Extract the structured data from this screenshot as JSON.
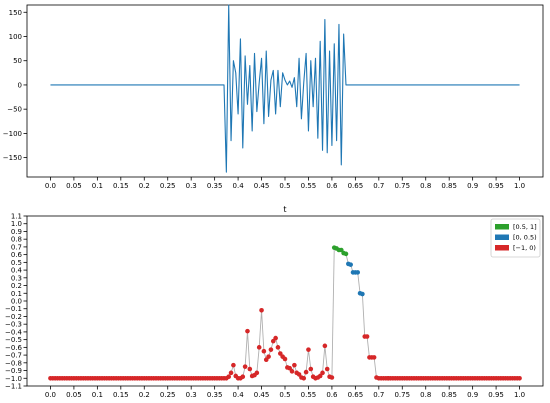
{
  "chart_data": [
    {
      "type": "line",
      "title": "",
      "xlabel": "",
      "ylabel": "",
      "xlim": [
        -0.05,
        1.05
      ],
      "ylim": [
        -190,
        165
      ],
      "x_ticks": [
        0.0,
        0.05,
        0.1,
        0.15,
        0.2,
        0.25,
        0.3,
        0.35,
        0.4,
        0.45,
        0.5,
        0.55,
        0.6,
        0.65,
        0.7,
        0.75,
        0.8,
        0.85,
        0.9,
        0.95,
        1.0
      ],
      "x_tick_labels": [
        "0.0",
        "0.05",
        "0.1",
        "0.15",
        "0.2",
        "0.25",
        "0.3",
        "0.35",
        "0.4",
        "0.45",
        "0.5",
        "0.55",
        "0.6",
        "0.65",
        "0.7",
        "0.75",
        "0.8",
        "0.85",
        "0.9",
        "0.95",
        "1.0"
      ],
      "y_ticks": [
        -150,
        -100,
        -50,
        0,
        50,
        100,
        150
      ],
      "y_tick_labels": [
        "−150",
        "−100",
        "−50",
        "0",
        "50",
        "100",
        "150"
      ],
      "color": "#1f77b4",
      "grid": false,
      "series": [
        {
          "x": [
            0.0,
            0.37,
            0.375,
            0.38,
            0.385,
            0.39,
            0.395,
            0.4,
            0.405,
            0.41,
            0.415,
            0.42,
            0.425,
            0.43,
            0.435,
            0.44,
            0.445,
            0.45,
            0.455,
            0.46,
            0.465,
            0.47,
            0.475,
            0.48,
            0.485,
            0.49,
            0.495,
            0.5,
            0.505,
            0.51,
            0.515,
            0.52,
            0.525,
            0.53,
            0.535,
            0.54,
            0.545,
            0.55,
            0.555,
            0.56,
            0.565,
            0.57,
            0.575,
            0.58,
            0.585,
            0.59,
            0.595,
            0.6,
            0.605,
            0.61,
            0.615,
            0.62,
            0.625,
            0.63,
            1.0
          ],
          "y": [
            0,
            0,
            -180,
            165,
            -115,
            50,
            25,
            -60,
            95,
            -130,
            60,
            -40,
            40,
            -95,
            65,
            -55,
            5,
            55,
            -80,
            70,
            -65,
            10,
            30,
            -60,
            30,
            -45,
            25,
            10,
            0,
            8,
            -5,
            15,
            -45,
            55,
            -70,
            5,
            65,
            -95,
            50,
            -45,
            55,
            -110,
            90,
            -135,
            135,
            -140,
            70,
            -125,
            85,
            -115,
            125,
            -165,
            105,
            0,
            0
          ]
        }
      ]
    },
    {
      "type": "scatter",
      "title": "t",
      "xlabel": "",
      "ylabel": "",
      "xlim": [
        -0.05,
        1.05
      ],
      "ylim": [
        -1.1,
        1.1
      ],
      "x_ticks": [
        0.0,
        0.05,
        0.1,
        0.15,
        0.2,
        0.25,
        0.3,
        0.35,
        0.4,
        0.45,
        0.5,
        0.55,
        0.6,
        0.65,
        0.7,
        0.75,
        0.8,
        0.85,
        0.9,
        0.95,
        1.0
      ],
      "x_tick_labels": [
        "0.0",
        "0.05",
        "0.1",
        "0.15",
        "0.2",
        "0.25",
        "0.3",
        "0.35",
        "0.4",
        "0.45",
        "0.5",
        "0.55",
        "0.6",
        "0.65",
        "0.7",
        "0.75",
        "0.8",
        "0.85",
        "0.9",
        "0.95",
        "1.0"
      ],
      "y_ticks": [
        -1.1,
        -1.0,
        -0.9,
        -0.8,
        -0.7,
        -0.6,
        -0.5,
        -0.4,
        -0.3,
        -0.2,
        -0.1,
        0.0,
        0.1,
        0.2,
        0.3,
        0.4,
        0.5,
        0.6,
        0.7,
        0.8,
        0.9,
        1.0,
        1.1
      ],
      "y_tick_labels": [
        "−1.1",
        "−1.0",
        "−0.9",
        "−0.8",
        "−0.7",
        "−0.6",
        "−0.5",
        "−0.4",
        "−0.3",
        "−0.2",
        "−0.1",
        "0.0",
        "0.1",
        "0.2",
        "0.3",
        "0.4",
        "0.5",
        "0.6",
        "0.7",
        "0.8",
        "0.9",
        "1.0",
        "1.1"
      ],
      "grid": false,
      "legend_position": "top-right",
      "connector_color": "#b0b0b0",
      "legend": [
        {
          "label": "[0.5, 1]",
          "color": "#2ca02c"
        },
        {
          "label": "[0, 0.5)",
          "color": "#1f77b4"
        },
        {
          "label": "[−1, 0)",
          "color": "#d62728"
        }
      ],
      "flat_segments": [
        {
          "x_start": 0.0,
          "x_end": 0.37,
          "y": -1.0
        },
        {
          "x_start": 0.72,
          "x_end": 1.0,
          "y": -1.0
        }
      ],
      "points": [
        {
          "x": 0.375,
          "y": -1.0
        },
        {
          "x": 0.38,
          "y": -0.98
        },
        {
          "x": 0.385,
          "y": -0.93
        },
        {
          "x": 0.39,
          "y": -0.83
        },
        {
          "x": 0.395,
          "y": -0.97
        },
        {
          "x": 0.4,
          "y": -1.0
        },
        {
          "x": 0.405,
          "y": -1.0
        },
        {
          "x": 0.41,
          "y": -0.98
        },
        {
          "x": 0.415,
          "y": -0.85
        },
        {
          "x": 0.42,
          "y": -0.39
        },
        {
          "x": 0.425,
          "y": -0.88
        },
        {
          "x": 0.43,
          "y": -0.97
        },
        {
          "x": 0.435,
          "y": -0.96
        },
        {
          "x": 0.44,
          "y": -0.93
        },
        {
          "x": 0.445,
          "y": -0.6
        },
        {
          "x": 0.45,
          "y": -0.12
        },
        {
          "x": 0.455,
          "y": -0.65
        },
        {
          "x": 0.46,
          "y": -0.76
        },
        {
          "x": 0.465,
          "y": -0.72
        },
        {
          "x": 0.47,
          "y": -0.63
        },
        {
          "x": 0.475,
          "y": -0.52
        },
        {
          "x": 0.48,
          "y": -0.48
        },
        {
          "x": 0.485,
          "y": -0.6
        },
        {
          "x": 0.49,
          "y": -0.68
        },
        {
          "x": 0.495,
          "y": -0.72
        },
        {
          "x": 0.5,
          "y": -0.75
        },
        {
          "x": 0.505,
          "y": -0.86
        },
        {
          "x": 0.51,
          "y": -0.87
        },
        {
          "x": 0.515,
          "y": -0.91
        },
        {
          "x": 0.52,
          "y": -0.83
        },
        {
          "x": 0.525,
          "y": -0.93
        },
        {
          "x": 0.53,
          "y": -0.95
        },
        {
          "x": 0.535,
          "y": -0.99
        },
        {
          "x": 0.54,
          "y": -1.0
        },
        {
          "x": 0.545,
          "y": -0.92
        },
        {
          "x": 0.55,
          "y": -0.63
        },
        {
          "x": 0.555,
          "y": -0.88
        },
        {
          "x": 0.56,
          "y": -0.98
        },
        {
          "x": 0.565,
          "y": -1.0
        },
        {
          "x": 0.57,
          "y": -0.99
        },
        {
          "x": 0.575,
          "y": -0.97
        },
        {
          "x": 0.58,
          "y": -0.93
        },
        {
          "x": 0.585,
          "y": -0.58
        },
        {
          "x": 0.59,
          "y": -0.88
        },
        {
          "x": 0.595,
          "y": -0.98
        },
        {
          "x": 0.6,
          "y": -0.99
        },
        {
          "x": 0.605,
          "y": 0.69
        },
        {
          "x": 0.61,
          "y": 0.68
        },
        {
          "x": 0.615,
          "y": 0.66
        },
        {
          "x": 0.62,
          "y": 0.66
        },
        {
          "x": 0.625,
          "y": 0.62
        },
        {
          "x": 0.63,
          "y": 0.61
        },
        {
          "x": 0.635,
          "y": 0.48
        },
        {
          "x": 0.64,
          "y": 0.47
        },
        {
          "x": 0.645,
          "y": 0.37
        },
        {
          "x": 0.65,
          "y": 0.37
        },
        {
          "x": 0.655,
          "y": 0.37
        },
        {
          "x": 0.66,
          "y": 0.1
        },
        {
          "x": 0.665,
          "y": 0.09
        },
        {
          "x": 0.67,
          "y": -0.46
        },
        {
          "x": 0.675,
          "y": -0.46
        },
        {
          "x": 0.68,
          "y": -0.73
        },
        {
          "x": 0.685,
          "y": -0.73
        },
        {
          "x": 0.69,
          "y": -0.73
        },
        {
          "x": 0.695,
          "y": -0.99
        },
        {
          "x": 0.7,
          "y": -1.0
        },
        {
          "x": 0.705,
          "y": -1.0
        },
        {
          "x": 0.71,
          "y": -1.0
        },
        {
          "x": 0.715,
          "y": -1.0
        },
        {
          "x": 0.72,
          "y": -1.0
        }
      ]
    }
  ]
}
